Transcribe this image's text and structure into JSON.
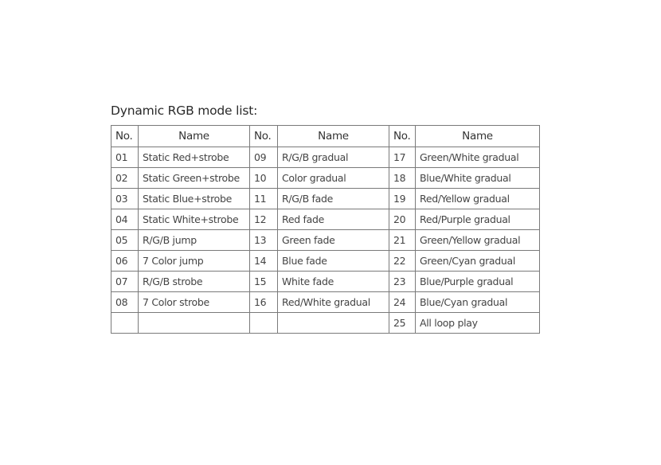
{
  "title": "Dynamic RGB mode list:",
  "headers": [
    "No.",
    "Name",
    "No.",
    "Name",
    "No.",
    "Name"
  ],
  "rows": [
    [
      "01",
      "Static Red+strobe",
      "09",
      "R/G/B gradual",
      "17",
      "Green/White gradual"
    ],
    [
      "02",
      "Static Green+strobe",
      "10",
      "Color gradual",
      "18",
      "Blue/White gradual"
    ],
    [
      "03",
      "Static Blue+strobe",
      "11",
      "R/G/B fade",
      "19",
      "Red/Yellow gradual"
    ],
    [
      "04",
      "Static White+strobe",
      "12",
      "Red fade",
      "20",
      "Red/Purple gradual"
    ],
    [
      "05",
      "R/G/B jump",
      "13",
      "Green fade",
      "21",
      "Green/Yellow gradual"
    ],
    [
      "06",
      "7 Color jump",
      "14",
      "Blue fade",
      "22",
      "Green/Cyan gradual"
    ],
    [
      "07",
      "R/G/B strobe",
      "15",
      "White fade",
      "23",
      "Blue/Purple gradual"
    ],
    [
      "08",
      "7 Color strobe",
      "16",
      "Red/White gradual",
      "24",
      "Blue/Cyan gradual"
    ],
    [
      "",
      "",
      "",
      "",
      "25",
      "All loop play"
    ]
  ]
}
